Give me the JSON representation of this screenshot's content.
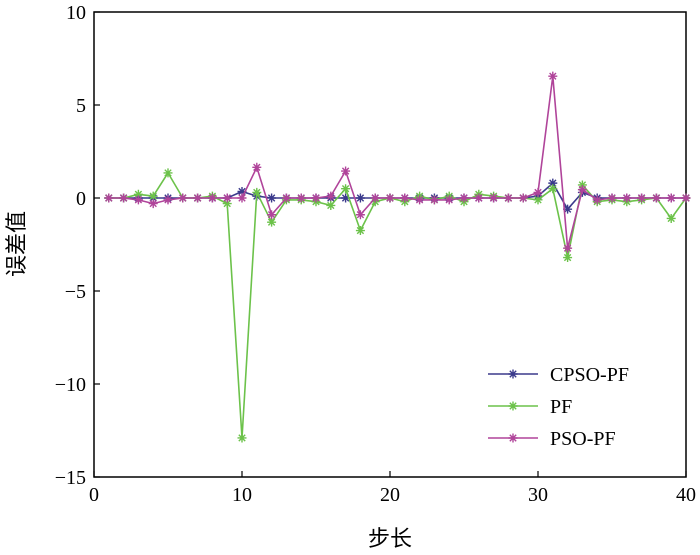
{
  "chart_data": {
    "type": "line",
    "title": "",
    "xlabel": "步长",
    "ylabel": "误差值",
    "xlim": [
      0,
      40
    ],
    "ylim": [
      -15,
      10
    ],
    "xticks": [
      0,
      10,
      20,
      30,
      40
    ],
    "yticks": [
      -15,
      -10,
      -5,
      0,
      5,
      10
    ],
    "grid": false,
    "legend_position": "bottom-right",
    "x": [
      1,
      2,
      3,
      4,
      5,
      6,
      7,
      8,
      9,
      10,
      11,
      12,
      13,
      14,
      15,
      16,
      17,
      18,
      19,
      20,
      21,
      22,
      23,
      24,
      25,
      26,
      27,
      28,
      29,
      30,
      31,
      32,
      33,
      34,
      35,
      36,
      37,
      38,
      39,
      40
    ],
    "series": [
      {
        "name": "CPSO-PF",
        "color": "#3b3a8c",
        "values": [
          0,
          0,
          0,
          0,
          0,
          0,
          0,
          0,
          0,
          0.35,
          0.1,
          0,
          0,
          0,
          0,
          0,
          0,
          0,
          0,
          0,
          0,
          0,
          0,
          0,
          0,
          0,
          0,
          0,
          0,
          0.1,
          0.8,
          -0.6,
          0.3,
          0,
          0,
          0,
          0,
          0,
          0,
          0
        ]
      },
      {
        "name": "PF",
        "color": "#6cc24a",
        "values": [
          0,
          0,
          0.2,
          0.1,
          1.35,
          0,
          0,
          0.1,
          -0.3,
          -12.9,
          0.3,
          -1.3,
          -0.1,
          -0.1,
          -0.2,
          -0.4,
          0.5,
          -1.75,
          -0.2,
          0,
          -0.2,
          0.1,
          -0.1,
          0.1,
          -0.2,
          0.2,
          0.1,
          0,
          0,
          -0.1,
          0.5,
          -3.2,
          0.7,
          -0.2,
          -0.1,
          -0.2,
          -0.1,
          0,
          -1.1,
          0
        ]
      },
      {
        "name": "PSO-PF",
        "color": "#b0449a",
        "values": [
          0,
          0,
          -0.1,
          -0.3,
          -0.1,
          0,
          0,
          0,
          0,
          0,
          1.65,
          -0.9,
          0,
          0,
          0,
          0.1,
          1.45,
          -0.9,
          0,
          0,
          0,
          -0.1,
          -0.1,
          -0.1,
          0,
          0,
          0,
          0,
          0,
          0.3,
          6.55,
          -2.7,
          0.45,
          -0.1,
          0,
          0,
          0,
          0,
          0,
          0
        ]
      }
    ]
  }
}
